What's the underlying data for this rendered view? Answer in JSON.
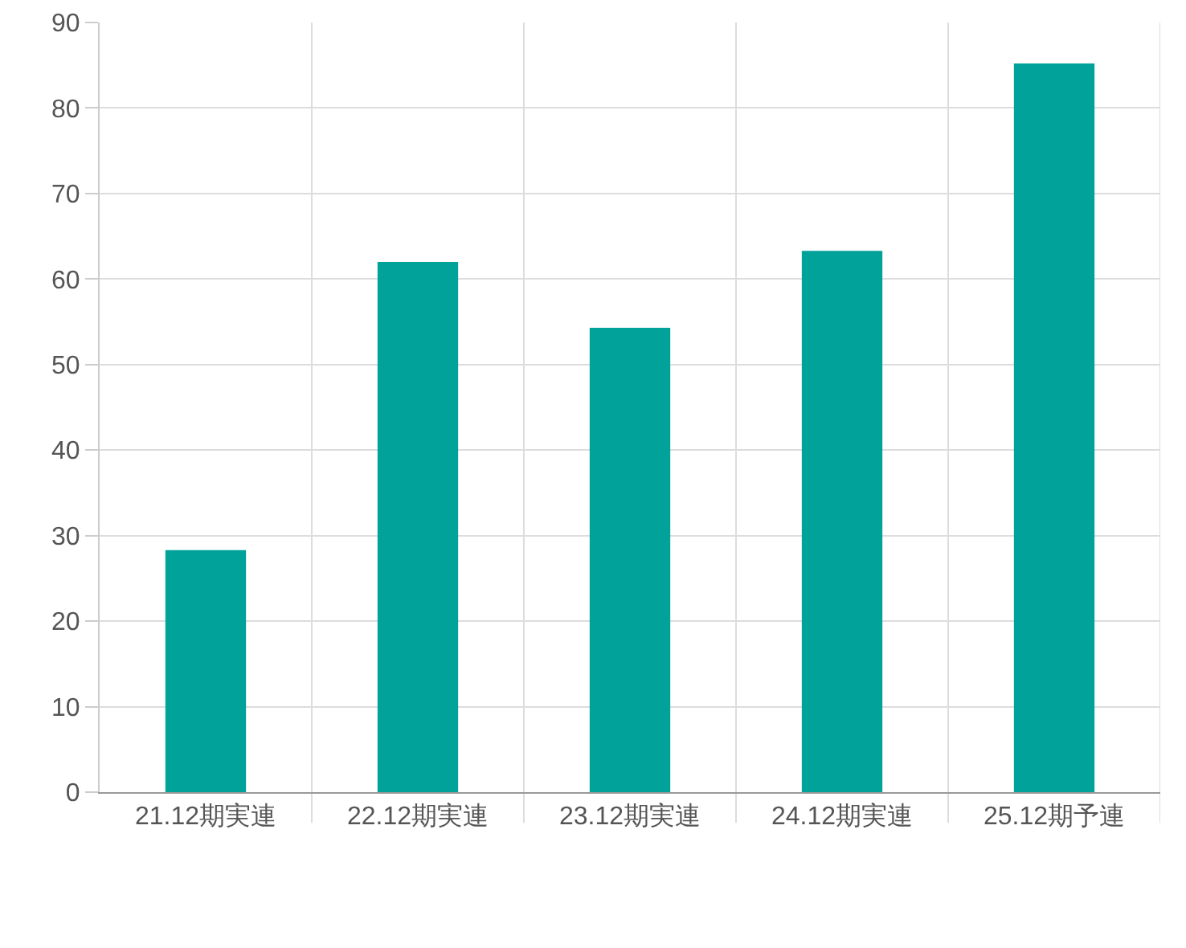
{
  "chart_data": {
    "type": "bar",
    "categories": [
      "21.12期実連",
      "22.12期実連",
      "23.12期実連",
      "24.12期実連",
      "25.12期予連"
    ],
    "values": [
      28.3,
      62,
      54.3,
      63.3,
      85.2
    ],
    "color": "#00a29a",
    "ylim": [
      0,
      90
    ],
    "yticks": [
      0,
      10,
      20,
      30,
      40,
      50,
      60,
      70,
      80,
      90
    ],
    "grid": true
  }
}
